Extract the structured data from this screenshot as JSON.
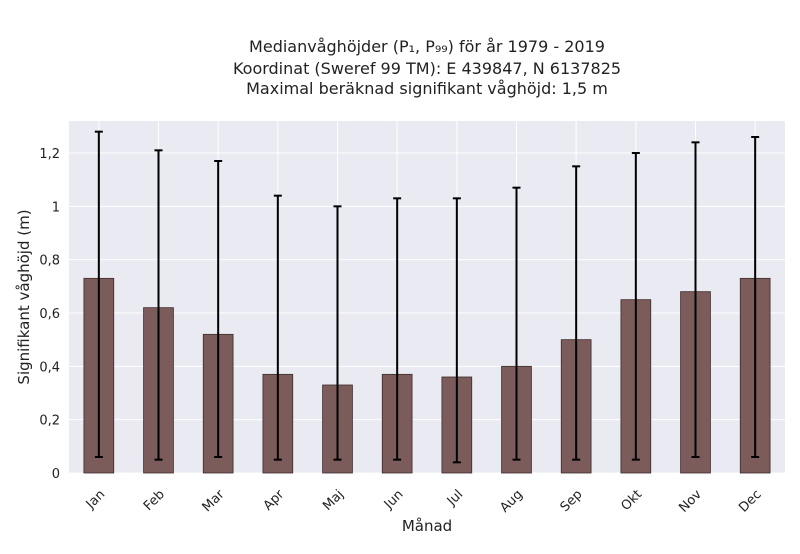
{
  "chart_data": {
    "type": "bar",
    "title_lines": [
      "Medianvåghöjder (P₁, P₉₉) för år 1979 - 2019",
      "Koordinat (Sweref 99 TM): E 439847, N 6137825",
      "Maximal beräknad signifikant våghöjd: 1,5 m"
    ],
    "xlabel": "Månad",
    "ylabel": "Signifikant våghöjd (m)",
    "categories": [
      "Jan",
      "Feb",
      "Mar",
      "Apr",
      "Maj",
      "Jun",
      "Jul",
      "Aug",
      "Sep",
      "Okt",
      "Nov",
      "Dec"
    ],
    "values": [
      0.73,
      0.62,
      0.52,
      0.37,
      0.33,
      0.37,
      0.36,
      0.4,
      0.5,
      0.65,
      0.68,
      0.73
    ],
    "error_low": [
      0.06,
      0.05,
      0.06,
      0.05,
      0.05,
      0.05,
      0.04,
      0.05,
      0.05,
      0.05,
      0.06,
      0.06
    ],
    "error_high": [
      1.28,
      1.21,
      1.17,
      1.04,
      1.0,
      1.03,
      1.03,
      1.07,
      1.15,
      1.2,
      1.24,
      1.26
    ],
    "ylim": [
      0,
      1.32
    ],
    "yticks": [
      0,
      0.2,
      0.4,
      0.6,
      0.8,
      1.0,
      1.2
    ],
    "ytick_labels": [
      "0",
      "0,2",
      "0,4",
      "0,6",
      "0,8",
      "1",
      "1,2"
    ],
    "grid": true,
    "legend": "none",
    "colors": {
      "bar": "#7c5b5b",
      "bar_edge": "#3d2b2b",
      "error": "#000000",
      "plot_background": "#eaeaf2",
      "grid": "#ffffff"
    }
  }
}
